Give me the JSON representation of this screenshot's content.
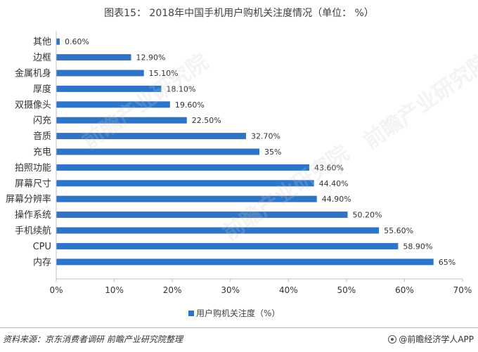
{
  "title": "图表15： 2018年中国手机用户购机关注度情况（单位： %）",
  "legend_label": "用户购机关注度（%）",
  "source": "资料来源：京东消费者调研 前瞻产业研究院整理",
  "brand": "@前瞻经济学人APP",
  "watermark": "前瞻产业研究院",
  "colors": {
    "bar": "#2e75c7"
  },
  "chart_data": {
    "type": "bar",
    "orientation": "horizontal",
    "title": "图表15： 2018年中国手机用户购机关注度情况（单位： %）",
    "categories": [
      "其他",
      "边框",
      "金属机身",
      "厚度",
      "双摄像头",
      "闪充",
      "音质",
      "充电",
      "拍照功能",
      "屏幕尺寸",
      "屏幕分辨率",
      "操作系统",
      "手机续航",
      "CPU",
      "内存"
    ],
    "series": [
      {
        "name": "用户购机关注度（%）",
        "values": [
          0.6,
          12.9,
          15.1,
          18.1,
          19.6,
          22.5,
          32.7,
          35,
          43.6,
          44.4,
          44.9,
          50.2,
          55.6,
          58.9,
          65
        ]
      }
    ],
    "data_labels": [
      "0.60%",
      "12.90%",
      "15.10%",
      "18.10%",
      "19.60%",
      "22.50%",
      "32.70%",
      "35%",
      "43.60%",
      "44.40%",
      "44.90%",
      "50.20%",
      "55.60%",
      "58.90%",
      "65%"
    ],
    "xlim": [
      0,
      70
    ],
    "x_ticks": [
      0,
      10,
      20,
      30,
      40,
      50,
      60,
      70
    ],
    "x_tick_labels": [
      "0%",
      "10%",
      "20%",
      "30%",
      "40%",
      "50%",
      "60%",
      "70%"
    ],
    "grid": false,
    "legend_position": "bottom"
  }
}
